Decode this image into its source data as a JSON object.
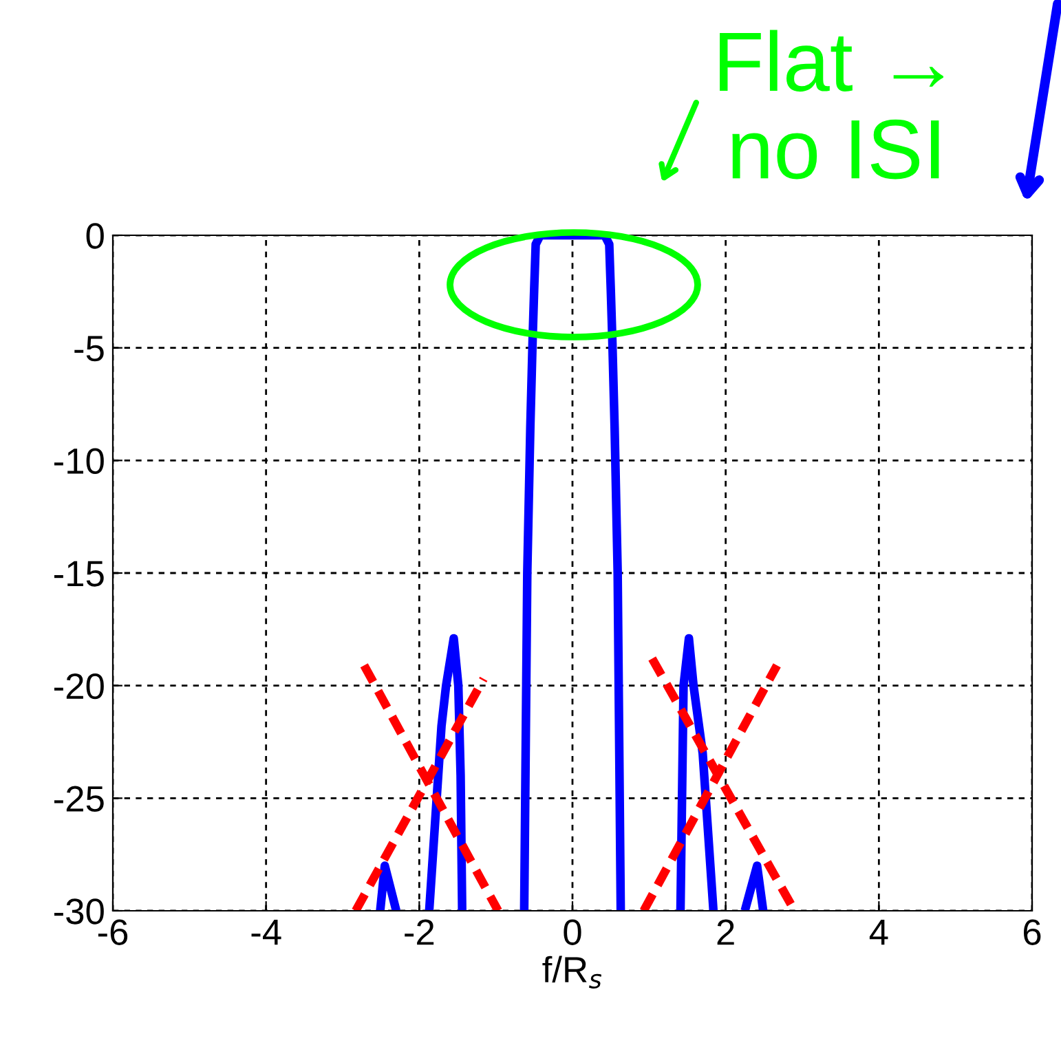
{
  "chart_data": {
    "type": "line",
    "xlabel": "f/R$_{s}$",
    "xlim": [
      -6,
      6
    ],
    "xticks": [
      -6,
      -4,
      -2,
      0,
      2,
      4,
      6
    ],
    "ylim": [
      -30,
      0
    ],
    "yticks": [
      -30,
      -25,
      -20,
      -15,
      -10,
      -5,
      0
    ],
    "grid": true,
    "legend": false,
    "annotations": [
      "Flat →\nno ISI"
    ],
    "series": [
      {
        "color": "#0000ff",
        "line_style": "solid",
        "x": [
          -2.51,
          -2.45,
          -2.3,
          -2.1,
          -1.87,
          -1.71,
          -1.65,
          -1.55,
          -1.49,
          -1.46,
          -1.44,
          -1.0,
          -0.63,
          -0.59,
          -0.55,
          -0.52,
          -0.5,
          -0.48,
          -0.42,
          0.42,
          0.48,
          0.5,
          0.52,
          0.55,
          0.59,
          0.63,
          1.0,
          1.41,
          1.45,
          1.52,
          1.58,
          1.7,
          1.84,
          2.0,
          2.25,
          2.41,
          2.49
        ],
        "values": [
          -30,
          -28,
          -30,
          null,
          -30,
          -21.8,
          -20,
          -17.9,
          -20,
          -24,
          -30,
          null,
          -30,
          -15,
          -8.5,
          -4.6,
          -2.4,
          -0.4,
          0,
          0,
          -0.4,
          -2.4,
          -4.6,
          -8.5,
          -15,
          -30,
          null,
          -30,
          -20,
          -17.9,
          -20,
          -23,
          -30,
          null,
          -30,
          -28,
          -30
        ]
      },
      {
        "color": "#ff0000",
        "line_style": "dashed",
        "x": [
          -2.72,
          -0.97
        ],
        "values": [
          -19.1,
          -30
        ]
      },
      {
        "color": "#ff0000",
        "line_style": "dashed",
        "x": [
          -2.83,
          -1.16
        ],
        "values": [
          -30,
          -19.7
        ]
      },
      {
        "color": "#ff0000",
        "line_style": "dashed",
        "x": [
          1.04,
          2.9
        ],
        "values": [
          -18.8,
          -30
        ]
      },
      {
        "color": "#ff0000",
        "line_style": "dashed",
        "x": [
          0.93,
          2.67
        ],
        "values": [
          -30,
          -19.1
        ]
      }
    ]
  }
}
